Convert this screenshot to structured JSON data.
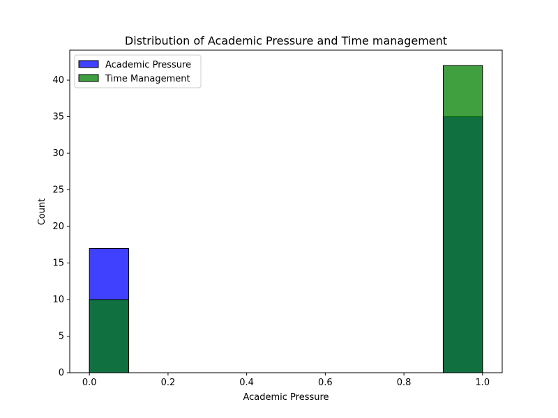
{
  "chart_data": {
    "type": "bar",
    "title": "Distribution of Academic Pressure and Time management",
    "xlabel": "Academic Pressure",
    "ylabel": "Count",
    "xlim": [
      -0.05,
      1.05
    ],
    "ylim": [
      0,
      44.1
    ],
    "xticks": [
      0.0,
      0.2,
      0.4,
      0.6,
      0.8,
      1.0
    ],
    "xtick_labels": [
      "0.0",
      "0.2",
      "0.4",
      "0.6",
      "0.8",
      "1.0"
    ],
    "yticks": [
      0,
      5,
      10,
      15,
      20,
      25,
      30,
      35,
      40
    ],
    "ytick_labels": [
      "0",
      "5",
      "10",
      "15",
      "20",
      "25",
      "30",
      "35",
      "40"
    ],
    "bin_edges": [
      0.0,
      0.1,
      0.2,
      0.3,
      0.4,
      0.5,
      0.6,
      0.7,
      0.8,
      0.9,
      1.0
    ],
    "series": [
      {
        "name": "Academic Pressure",
        "color": "#0000ff",
        "alpha": 0.75,
        "values": [
          17,
          0,
          0,
          0,
          0,
          0,
          0,
          0,
          0,
          35
        ]
      },
      {
        "name": "Time Management",
        "color": "#008000",
        "alpha": 0.75,
        "values": [
          10,
          0,
          0,
          0,
          0,
          0,
          0,
          0,
          0,
          42
        ]
      }
    ],
    "grid": false,
    "legend": "upper left"
  }
}
